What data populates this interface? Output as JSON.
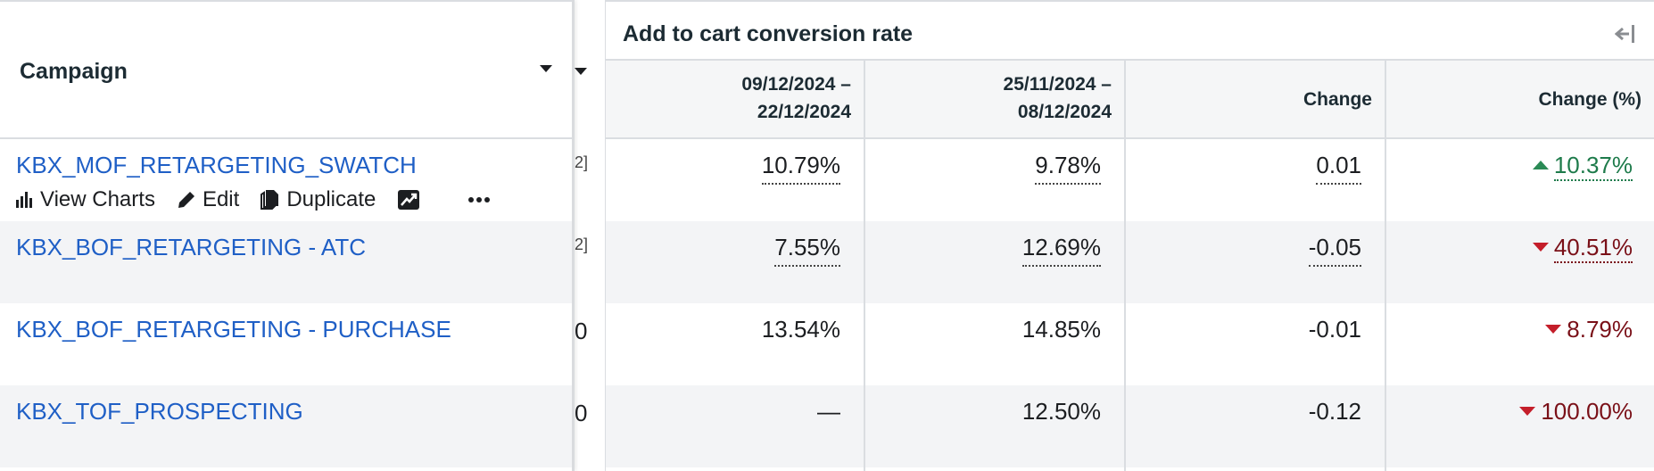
{
  "campaign_header": {
    "label": "Campaign"
  },
  "metric_group": {
    "title": "Add to cart conversion rate"
  },
  "columns": {
    "current_line1": "09/12/2024 –",
    "current_line2": "22/12/2024",
    "previous_line1": "25/11/2024 –",
    "previous_line2": "08/12/2024",
    "change": "Change",
    "change_pct": "Change (%)"
  },
  "row_actions": {
    "view_charts": "View Charts",
    "edit": "Edit",
    "duplicate": "Duplicate"
  },
  "rows": [
    {
      "name": "KBX_MOF_RETARGETING_SWATCH",
      "sliver": "2]",
      "current": "10.79%",
      "previous": "9.78%",
      "change": "0.01",
      "change_pct": "10.37%",
      "direction": "up"
    },
    {
      "name": "KBX_BOF_RETARGETING - ATC",
      "sliver": "2]",
      "current": "7.55%",
      "previous": "12.69%",
      "change": "-0.05",
      "change_pct": "40.51%",
      "direction": "down"
    },
    {
      "name": "KBX_BOF_RETARGETING - PURCHASE",
      "sliver": "0",
      "current": "13.54%",
      "previous": "14.85%",
      "change": "-0.01",
      "change_pct": "8.79%",
      "direction": "down"
    },
    {
      "name": "KBX_TOF_PROSPECTING",
      "sliver": "0",
      "current": "—",
      "previous": "12.50%",
      "change": "-0.12",
      "change_pct": "100.00%",
      "direction": "down"
    }
  ],
  "colors": {
    "link": "#1f5fc6",
    "positive": "#1e7b4b",
    "negative": "#7a1018",
    "alt_row": "#f3f4f6"
  }
}
